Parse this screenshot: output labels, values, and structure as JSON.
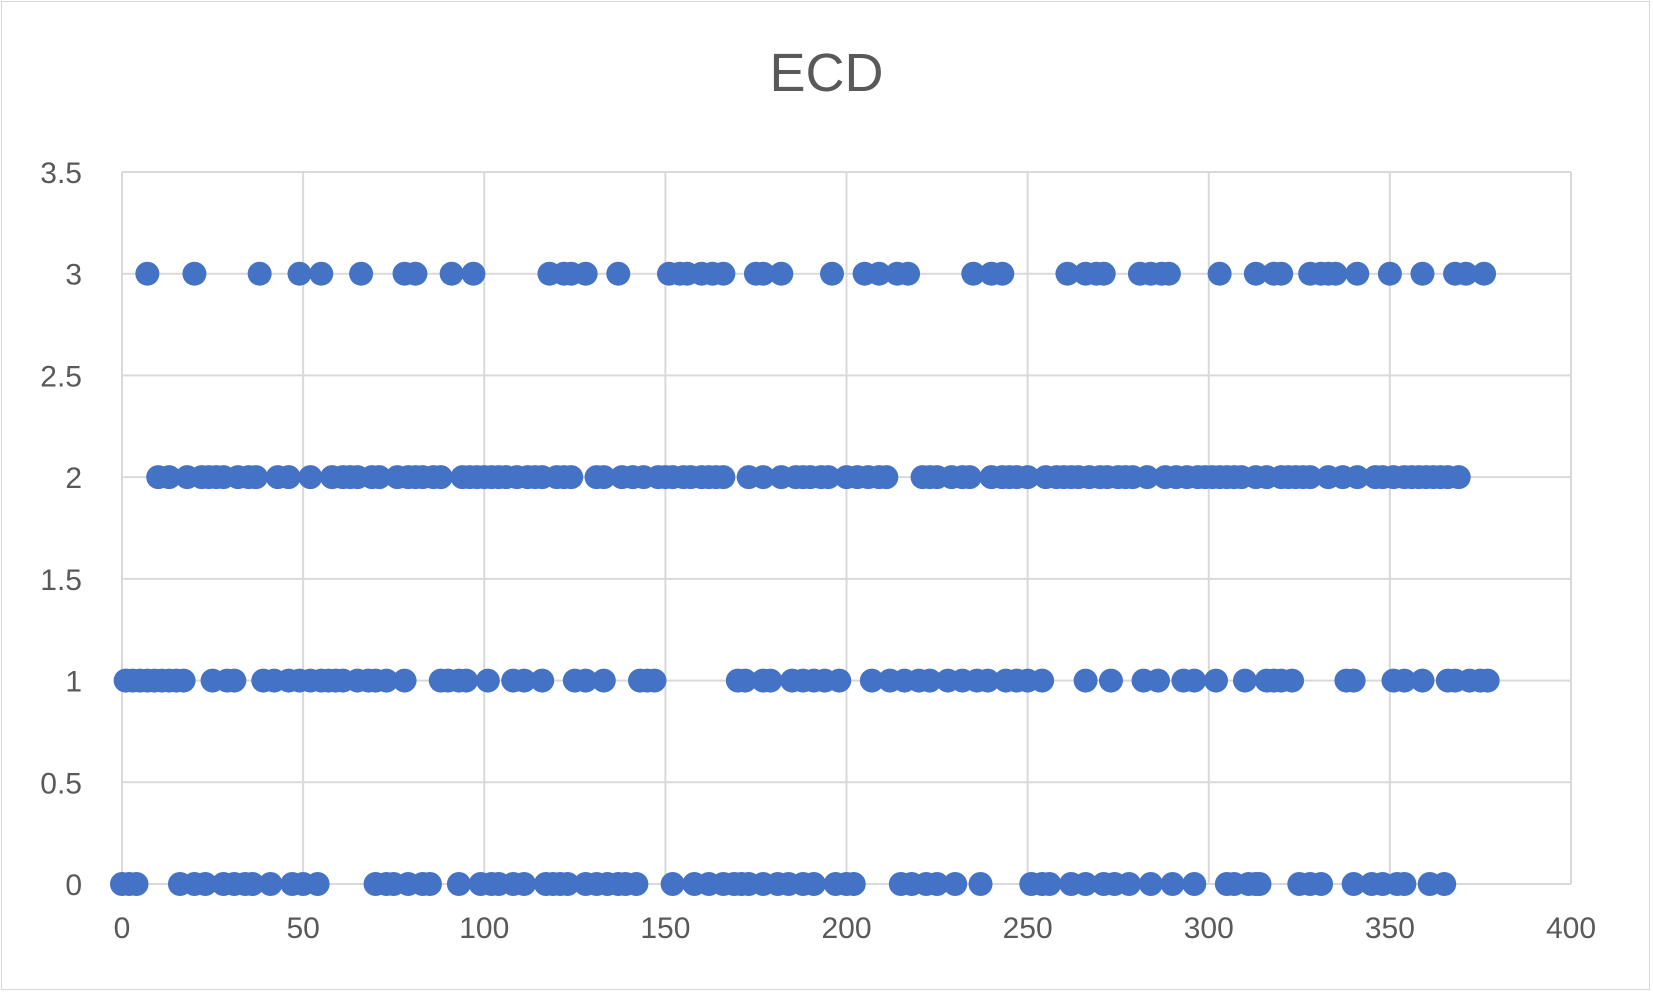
{
  "chart_data": {
    "type": "scatter",
    "title": "ECD",
    "xlabel": "",
    "ylabel": "",
    "xlim": [
      0,
      400
    ],
    "ylim": [
      0,
      3.5
    ],
    "x_ticks": [
      "0",
      "50",
      "100",
      "150",
      "200",
      "250",
      "300",
      "350",
      "400"
    ],
    "y_ticks": [
      "0",
      "0.5",
      "1",
      "1.5",
      "2",
      "2.5",
      "3",
      "3.5"
    ],
    "grid": true,
    "legend": "none",
    "marker_color": "#4472C4",
    "series": [
      {
        "y": 3,
        "x": [
          7,
          20,
          38,
          49,
          55,
          66,
          78,
          81,
          91,
          97,
          118,
          122,
          124,
          128,
          137,
          151,
          154,
          156,
          160,
          163,
          166,
          175,
          177,
          182,
          196,
          205,
          209,
          214,
          217,
          235,
          240,
          243,
          261,
          266,
          269,
          271,
          281,
          284,
          287,
          289,
          303,
          313,
          318,
          320,
          328,
          331,
          333,
          335,
          341,
          350,
          359,
          368,
          371,
          376
        ]
      },
      {
        "y": 2,
        "x": [
          10,
          13,
          18,
          22,
          24,
          26,
          28,
          32,
          35,
          37,
          43,
          46,
          52,
          58,
          61,
          63,
          65,
          69,
          71,
          76,
          79,
          81,
          83,
          86,
          88,
          94,
          96,
          98,
          100,
          102,
          104,
          106,
          109,
          112,
          114,
          116,
          120,
          122,
          124,
          131,
          133,
          138,
          141,
          144,
          148,
          150,
          152,
          155,
          157,
          160,
          162,
          164,
          166,
          173,
          177,
          182,
          186,
          188,
          190,
          193,
          195,
          200,
          203,
          206,
          209,
          211,
          221,
          223,
          225,
          229,
          232,
          234,
          240,
          243,
          245,
          247,
          250,
          255,
          258,
          260,
          262,
          264,
          267,
          270,
          272,
          275,
          277,
          279,
          283,
          288,
          291,
          294,
          297,
          299,
          301,
          303,
          305,
          307,
          309,
          313,
          316,
          320,
          322,
          324,
          326,
          328,
          333,
          337,
          341,
          346,
          348,
          351,
          354,
          356,
          358,
          360,
          362,
          364,
          366,
          369
        ]
      },
      {
        "y": 1,
        "x": [
          1,
          3,
          5,
          7,
          9,
          11,
          13,
          15,
          17,
          25,
          29,
          31,
          39,
          42,
          46,
          49,
          52,
          55,
          57,
          59,
          61,
          65,
          68,
          70,
          73,
          78,
          88,
          90,
          93,
          95,
          101,
          108,
          111,
          116,
          125,
          128,
          133,
          143,
          145,
          147,
          170,
          172,
          177,
          179,
          185,
          188,
          191,
          194,
          198,
          207,
          212,
          216,
          220,
          223,
          228,
          232,
          236,
          239,
          244,
          247,
          250,
          254,
          266,
          273,
          282,
          286,
          293,
          296,
          302,
          310,
          316,
          318,
          320,
          323,
          338,
          340,
          351,
          354,
          359,
          366,
          368,
          372,
          375,
          377
        ]
      },
      {
        "y": 0,
        "x": [
          0,
          2,
          4,
          16,
          20,
          23,
          28,
          31,
          34,
          36,
          41,
          47,
          50,
          54,
          70,
          73,
          75,
          79,
          83,
          85,
          93,
          99,
          102,
          104,
          108,
          111,
          117,
          119,
          121,
          123,
          128,
          131,
          134,
          137,
          139,
          142,
          152,
          158,
          162,
          166,
          169,
          171,
          173,
          177,
          181,
          184,
          188,
          191,
          197,
          200,
          202,
          215,
          218,
          222,
          225,
          230,
          237,
          251,
          254,
          256,
          262,
          266,
          271,
          274,
          278,
          284,
          290,
          296,
          305,
          307,
          311,
          313,
          314,
          325,
          328,
          331,
          340,
          345,
          348,
          352,
          354,
          361,
          365
        ]
      }
    ]
  }
}
